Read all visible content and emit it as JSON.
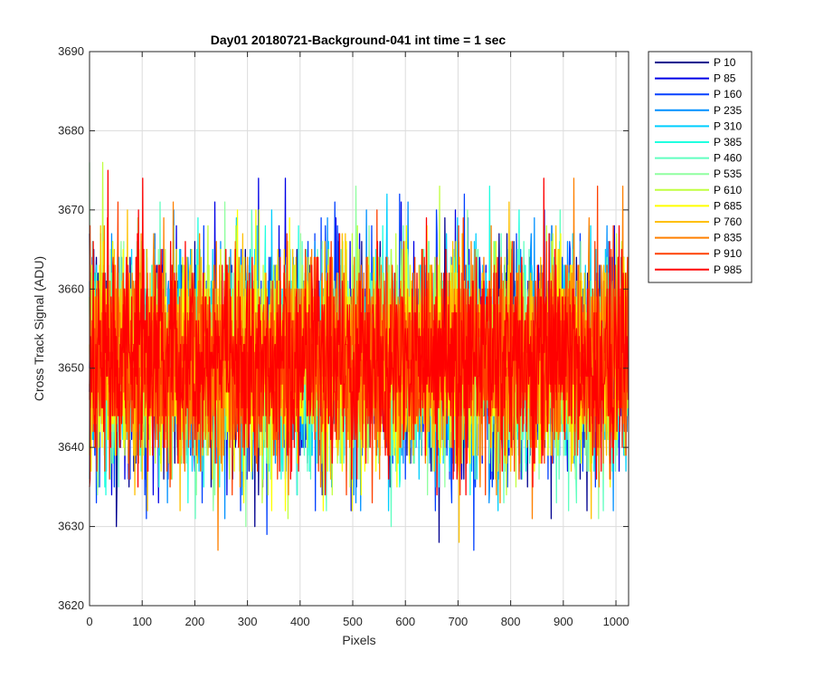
{
  "chart_data": {
    "type": "line",
    "title": "Day01 20180721-Background-041 int time = 1 sec",
    "xlabel": "Pixels",
    "ylabel": "Cross Track Signal (ADU)",
    "xlim": [
      0,
      1024
    ],
    "ylim": [
      3620,
      3690
    ],
    "xticks": [
      0,
      100,
      200,
      300,
      400,
      500,
      600,
      700,
      800,
      900,
      1000
    ],
    "yticks": [
      3620,
      3630,
      3640,
      3650,
      3660,
      3670,
      3680,
      3690
    ],
    "grid": true,
    "legend_position": "outside-right",
    "noise": {
      "mean": 3651,
      "std": 6.5,
      "min": 3621,
      "max": 3687,
      "points_per_series": 1024
    },
    "series": [
      {
        "name": "P 10",
        "color": "#00008F"
      },
      {
        "name": "P 85",
        "color": "#0000E6"
      },
      {
        "name": "P 160",
        "color": "#0040FF"
      },
      {
        "name": "P 235",
        "color": "#0090FF"
      },
      {
        "name": "P 310",
        "color": "#00CFFF"
      },
      {
        "name": "P 385",
        "color": "#20FFE0"
      },
      {
        "name": "P 460",
        "color": "#60FFC0"
      },
      {
        "name": "P 535",
        "color": "#90FFA0"
      },
      {
        "name": "P 610",
        "color": "#C0FF40"
      },
      {
        "name": "P 685",
        "color": "#FFFF00"
      },
      {
        "name": "P 760",
        "color": "#FFC000"
      },
      {
        "name": "P 835",
        "color": "#FF8000"
      },
      {
        "name": "P 910",
        "color": "#FF4000"
      },
      {
        "name": "P 985",
        "color": "#FF0000"
      }
    ]
  }
}
